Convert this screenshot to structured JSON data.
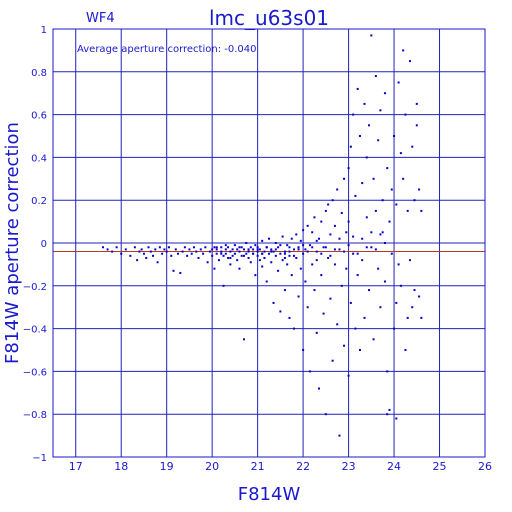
{
  "chart_data": {
    "type": "scatter",
    "title": "lmc_u63s01",
    "corner_label": "WF4",
    "annotation": "Average aperture correction: -0.040",
    "xlabel": "F814W",
    "ylabel": "F814W aperture correction",
    "xlim": [
      16.5,
      26
    ],
    "ylim": [
      -1,
      1
    ],
    "x_ticks": [
      17,
      18,
      19,
      20,
      21,
      22,
      23,
      24,
      25,
      26
    ],
    "y_ticks": [
      -1,
      -0.8,
      -0.6,
      -0.4,
      -0.2,
      0,
      0.2,
      0.4,
      0.6,
      0.8,
      1
    ],
    "x_tick_labels": [
      "17",
      "18",
      "19",
      "20",
      "21",
      "22",
      "23",
      "24",
      "25",
      "26"
    ],
    "y_tick_labels": [
      "−1",
      "−0.8",
      "−0.6",
      "−0.4",
      "−0.2",
      "0",
      "0.2",
      "0.4",
      "0.6",
      "0.8",
      "1"
    ],
    "grid": true,
    "reference_line": -0.04,
    "colors": {
      "points": "#0000cc",
      "axes": "#1a1acc",
      "grid": "#2222bb",
      "reference_line": "#b23a2a"
    },
    "points": [
      [
        17.6,
        -0.02
      ],
      [
        17.7,
        -0.03
      ],
      [
        17.8,
        -0.04
      ],
      [
        17.9,
        -0.02
      ],
      [
        18.0,
        -0.05
      ],
      [
        18.1,
        -0.03
      ],
      [
        18.2,
        -0.06
      ],
      [
        18.3,
        -0.02
      ],
      [
        18.35,
        -0.08
      ],
      [
        18.4,
        -0.04
      ],
      [
        18.45,
        -0.03
      ],
      [
        18.5,
        -0.05
      ],
      [
        18.55,
        -0.07
      ],
      [
        18.6,
        -0.02
      ],
      [
        18.65,
        -0.04
      ],
      [
        18.7,
        -0.06
      ],
      [
        18.75,
        -0.03
      ],
      [
        18.8,
        -0.09
      ],
      [
        18.85,
        -0.02
      ],
      [
        18.9,
        -0.05
      ],
      [
        18.95,
        -0.03
      ],
      [
        19.0,
        -0.04
      ],
      [
        19.05,
        -0.02
      ],
      [
        19.1,
        -0.06
      ],
      [
        19.15,
        -0.13
      ],
      [
        19.2,
        -0.03
      ],
      [
        19.25,
        -0.05
      ],
      [
        19.3,
        -0.14
      ],
      [
        19.35,
        -0.04
      ],
      [
        19.4,
        -0.02
      ],
      [
        19.45,
        -0.06
      ],
      [
        19.5,
        -0.03
      ],
      [
        19.55,
        -0.05
      ],
      [
        19.6,
        -0.02
      ],
      [
        19.65,
        -0.04
      ],
      [
        19.7,
        -0.07
      ],
      [
        19.75,
        -0.03
      ],
      [
        19.8,
        -0.05
      ],
      [
        19.85,
        -0.02
      ],
      [
        19.9,
        -0.09
      ],
      [
        19.95,
        -0.04
      ],
      [
        20.0,
        -0.06
      ],
      [
        20.0,
        -0.03
      ],
      [
        20.05,
        -0.02
      ],
      [
        20.05,
        -0.12
      ],
      [
        20.1,
        -0.05
      ],
      [
        20.1,
        -0.03
      ],
      [
        20.15,
        -0.08
      ],
      [
        20.2,
        -0.04
      ],
      [
        20.2,
        -0.02
      ],
      [
        20.25,
        -0.06
      ],
      [
        20.25,
        -0.2
      ],
      [
        20.3,
        -0.03
      ],
      [
        20.3,
        -0.05
      ],
      [
        20.35,
        -0.07
      ],
      [
        20.35,
        -0.02
      ],
      [
        20.4,
        -0.04
      ],
      [
        20.4,
        -0.1
      ],
      [
        20.45,
        -0.03
      ],
      [
        20.45,
        -0.06
      ],
      [
        20.5,
        -0.05
      ],
      [
        20.5,
        -0.01
      ],
      [
        20.55,
        -0.08
      ],
      [
        20.55,
        -0.03
      ],
      [
        20.6,
        -0.04
      ],
      [
        20.6,
        -0.12
      ],
      [
        20.65,
        -0.02
      ],
      [
        20.65,
        -0.06
      ],
      [
        20.7,
        -0.03
      ],
      [
        20.7,
        -0.45
      ],
      [
        20.75,
        -0.05
      ],
      [
        20.75,
        0.0
      ],
      [
        20.8,
        -0.07
      ],
      [
        20.8,
        -0.04
      ],
      [
        20.85,
        -0.02
      ],
      [
        20.85,
        -0.09
      ],
      [
        20.9,
        -0.05
      ],
      [
        20.9,
        -0.03
      ],
      [
        20.95,
        -0.15
      ],
      [
        20.95,
        -0.01
      ],
      [
        21.0,
        -0.06
      ],
      [
        21.0,
        -0.04
      ],
      [
        21.0,
        -0.02
      ],
      [
        21.05,
        -0.08
      ],
      [
        21.05,
        -0.03
      ],
      [
        21.1,
        -0.05
      ],
      [
        21.1,
        0.01
      ],
      [
        21.1,
        -0.11
      ],
      [
        21.15,
        -0.04
      ],
      [
        21.15,
        -0.07
      ],
      [
        21.2,
        -0.02
      ],
      [
        21.2,
        -0.18
      ],
      [
        21.25,
        -0.05
      ],
      [
        21.25,
        0.02
      ],
      [
        21.3,
        -0.03
      ],
      [
        21.3,
        -0.09
      ],
      [
        21.35,
        -0.28
      ],
      [
        21.35,
        -0.04
      ],
      [
        21.4,
        -0.06
      ],
      [
        21.4,
        0.0
      ],
      [
        21.45,
        -0.13
      ],
      [
        21.45,
        -0.02
      ],
      [
        21.5,
        -0.32
      ],
      [
        21.5,
        -0.05
      ],
      [
        21.55,
        0.03
      ],
      [
        21.55,
        -0.08
      ],
      [
        21.6,
        -0.04
      ],
      [
        21.6,
        -0.22
      ],
      [
        21.65,
        -0.01
      ],
      [
        21.65,
        -0.1
      ],
      [
        21.7,
        -0.35
      ],
      [
        21.7,
        -0.06
      ],
      [
        21.75,
        0.02
      ],
      [
        21.75,
        -0.15
      ],
      [
        21.8,
        -0.03
      ],
      [
        21.8,
        -0.4
      ],
      [
        21.85,
        -0.07
      ],
      [
        21.85,
        0.04
      ],
      [
        21.9,
        -0.25
      ],
      [
        21.9,
        -0.02
      ],
      [
        21.95,
        -0.12
      ],
      [
        21.95,
        0.01
      ],
      [
        22.0,
        -0.05
      ],
      [
        22.0,
        -0.5
      ],
      [
        22.0,
        0.06
      ],
      [
        22.05,
        -0.18
      ],
      [
        22.05,
        -0.03
      ],
      [
        22.1,
        0.08
      ],
      [
        22.1,
        -0.3
      ],
      [
        22.15,
        -0.01
      ],
      [
        22.15,
        -0.6
      ],
      [
        22.2,
        0.05
      ],
      [
        22.2,
        -0.1
      ],
      [
        22.25,
        -0.22
      ],
      [
        22.25,
        0.12
      ],
      [
        22.3,
        -0.04
      ],
      [
        22.3,
        -0.42
      ],
      [
        22.35,
        0.02
      ],
      [
        22.35,
        -0.68
      ],
      [
        22.4,
        -0.15
      ],
      [
        22.4,
        0.1
      ],
      [
        22.45,
        -0.33
      ],
      [
        22.45,
        -0.02
      ],
      [
        22.5,
        0.15
      ],
      [
        22.5,
        -0.8
      ],
      [
        22.55,
        -0.07
      ],
      [
        22.55,
        0.18
      ],
      [
        22.6,
        -0.26
      ],
      [
        22.6,
        0.04
      ],
      [
        22.65,
        -0.55
      ],
      [
        22.65,
        0.2
      ],
      [
        22.7,
        -0.1
      ],
      [
        22.7,
        0.08
      ],
      [
        22.75,
        -0.38
      ],
      [
        22.75,
        0.25
      ],
      [
        22.8,
        -0.03
      ],
      [
        22.8,
        -0.9
      ],
      [
        22.85,
        0.14
      ],
      [
        22.85,
        -0.2
      ],
      [
        22.9,
        0.3
      ],
      [
        22.9,
        -0.48
      ],
      [
        22.95,
        0.05
      ],
      [
        22.95,
        -0.12
      ],
      [
        23.0,
        0.35
      ],
      [
        23.0,
        -0.62
      ],
      [
        23.0,
        0.1
      ],
      [
        23.05,
        -0.28
      ],
      [
        23.05,
        0.45
      ],
      [
        23.1,
        -0.05
      ],
      [
        23.1,
        0.6
      ],
      [
        23.15,
        -0.4
      ],
      [
        23.15,
        0.22
      ],
      [
        23.2,
        0.72
      ],
      [
        23.2,
        -0.15
      ],
      [
        23.25,
        0.5
      ],
      [
        23.25,
        -0.5
      ],
      [
        23.3,
        0.28
      ],
      [
        23.3,
        -0.08
      ],
      [
        23.35,
        0.65
      ],
      [
        23.35,
        -0.35
      ],
      [
        23.4,
        0.12
      ],
      [
        23.4,
        0.4
      ],
      [
        23.45,
        -0.22
      ],
      [
        23.45,
        0.55
      ],
      [
        23.5,
        0.97
      ],
      [
        23.5,
        -0.02
      ],
      [
        23.55,
        0.3
      ],
      [
        23.55,
        -0.45
      ],
      [
        23.6,
        0.78
      ],
      [
        23.6,
        0.15
      ],
      [
        23.65,
        -0.12
      ],
      [
        23.65,
        0.48
      ],
      [
        23.7,
        0.62
      ],
      [
        23.7,
        -0.3
      ],
      [
        23.75,
        0.2
      ],
      [
        23.75,
        0.05
      ],
      [
        23.8,
        0.7
      ],
      [
        23.8,
        -0.18
      ],
      [
        23.85,
        0.35
      ],
      [
        23.85,
        -0.6
      ],
      [
        23.9,
        0.1
      ],
      [
        23.9,
        -0.78
      ],
      [
        23.95,
        0.25
      ],
      [
        23.95,
        -0.05
      ],
      [
        24.0,
        0.5
      ],
      [
        24.0,
        -0.4
      ],
      [
        24.05,
        0.18
      ],
      [
        24.05,
        -0.28
      ],
      [
        24.1,
        0.75
      ],
      [
        24.1,
        -0.1
      ],
      [
        24.15,
        0.42
      ],
      [
        24.15,
        -0.2
      ],
      [
        24.2,
        0.9
      ],
      [
        24.2,
        0.3
      ],
      [
        24.25,
        -0.5
      ],
      [
        24.25,
        0.6
      ],
      [
        24.3,
        0.15
      ],
      [
        24.3,
        -0.35
      ],
      [
        24.35,
        0.85
      ],
      [
        24.35,
        -0.08
      ],
      [
        24.4,
        0.45
      ],
      [
        24.4,
        -0.3
      ],
      [
        24.45,
        0.2
      ],
      [
        24.45,
        -0.22
      ],
      [
        24.5,
        0.65
      ],
      [
        24.5,
        0.55
      ],
      [
        24.55,
        0.25
      ],
      [
        24.6,
        0.15
      ],
      [
        24.6,
        -0.35
      ],
      [
        24.55,
        -0.25
      ],
      [
        24.05,
        -0.82
      ],
      [
        23.85,
        -0.8
      ],
      [
        22.3,
        -0.08
      ],
      [
        22.4,
        -0.05
      ],
      [
        22.5,
        -0.02
      ],
      [
        22.6,
        -0.06
      ],
      [
        22.7,
        -0.03
      ],
      [
        22.8,
        0.02
      ],
      [
        22.9,
        -0.04
      ],
      [
        23.0,
        -0.01
      ],
      [
        23.1,
        0.03
      ],
      [
        23.2,
        -0.05
      ],
      [
        23.3,
        0.02
      ],
      [
        23.4,
        -0.02
      ],
      [
        23.5,
        0.05
      ],
      [
        23.6,
        -0.03
      ],
      [
        23.7,
        0.04
      ],
      [
        23.8,
        0.0
      ],
      [
        21.6,
        -0.05
      ],
      [
        21.7,
        -0.02
      ],
      [
        21.8,
        -0.06
      ],
      [
        21.9,
        -0.03
      ],
      [
        22.0,
        -0.01
      ],
      [
        22.1,
        -0.04
      ],
      [
        22.2,
        -0.02
      ],
      [
        22.3,
        0.01
      ],
      [
        21.0,
        -0.03
      ],
      [
        21.1,
        -0.05
      ],
      [
        21.2,
        -0.02
      ],
      [
        21.3,
        -0.04
      ],
      [
        21.4,
        -0.03
      ],
      [
        21.5,
        -0.01
      ],
      [
        21.6,
        -0.07
      ],
      [
        21.7,
        -0.04
      ],
      [
        20.6,
        -0.02
      ],
      [
        20.7,
        -0.06
      ],
      [
        20.8,
        -0.03
      ],
      [
        20.9,
        -0.05
      ],
      [
        20.4,
        -0.07
      ],
      [
        20.3,
        -0.01
      ],
      [
        20.2,
        -0.05
      ],
      [
        20.1,
        -0.02
      ]
    ]
  }
}
